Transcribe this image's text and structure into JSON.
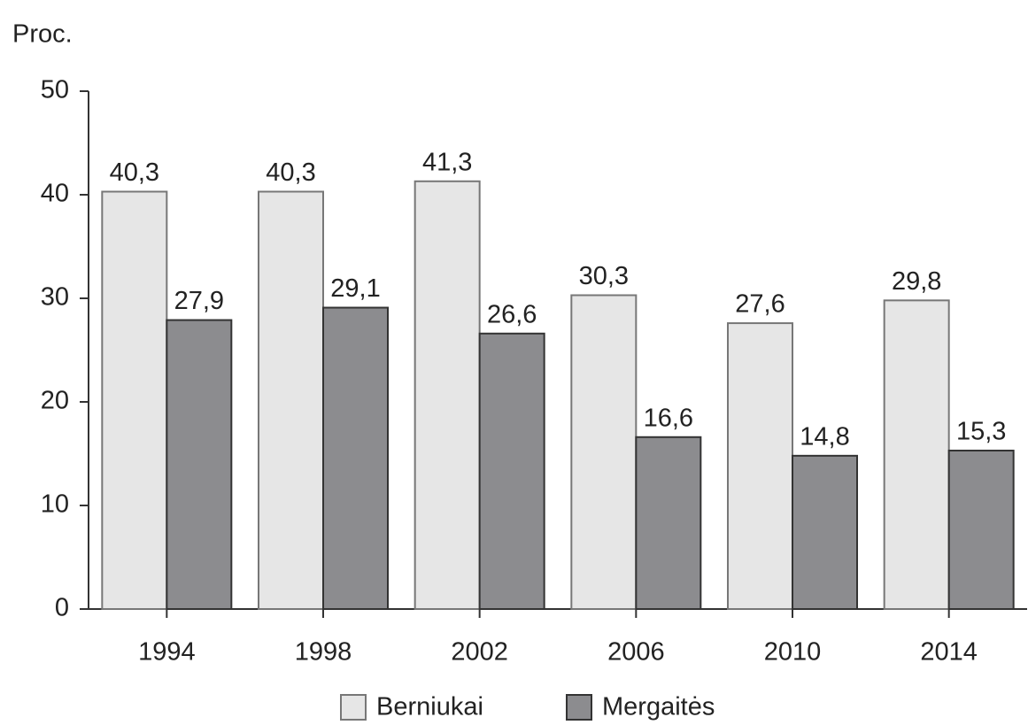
{
  "chart_data": {
    "type": "bar",
    "y_label": "Proc.",
    "categories": [
      "1994",
      "1998",
      "2002",
      "2006",
      "2010",
      "2014"
    ],
    "series": [
      {
        "name": "Berniukai",
        "color": "#e6e6e6",
        "values": [
          40.3,
          40.3,
          41.3,
          30.3,
          27.6,
          29.8
        ],
        "value_labels": [
          "40,3",
          "40,3",
          "41,3",
          "30,3",
          "27,6",
          "29,8"
        ]
      },
      {
        "name": "Mergaitės",
        "color": "#8c8c8f",
        "values": [
          27.9,
          29.1,
          26.6,
          16.6,
          14.8,
          15.3
        ],
        "value_labels": [
          "27,9",
          "29,1",
          "26,6",
          "16,6",
          "14,8",
          "15,3"
        ]
      }
    ],
    "ylim": [
      0,
      50
    ],
    "yticks": [
      0,
      10,
      20,
      30,
      40,
      50
    ],
    "legend": "bottom"
  }
}
